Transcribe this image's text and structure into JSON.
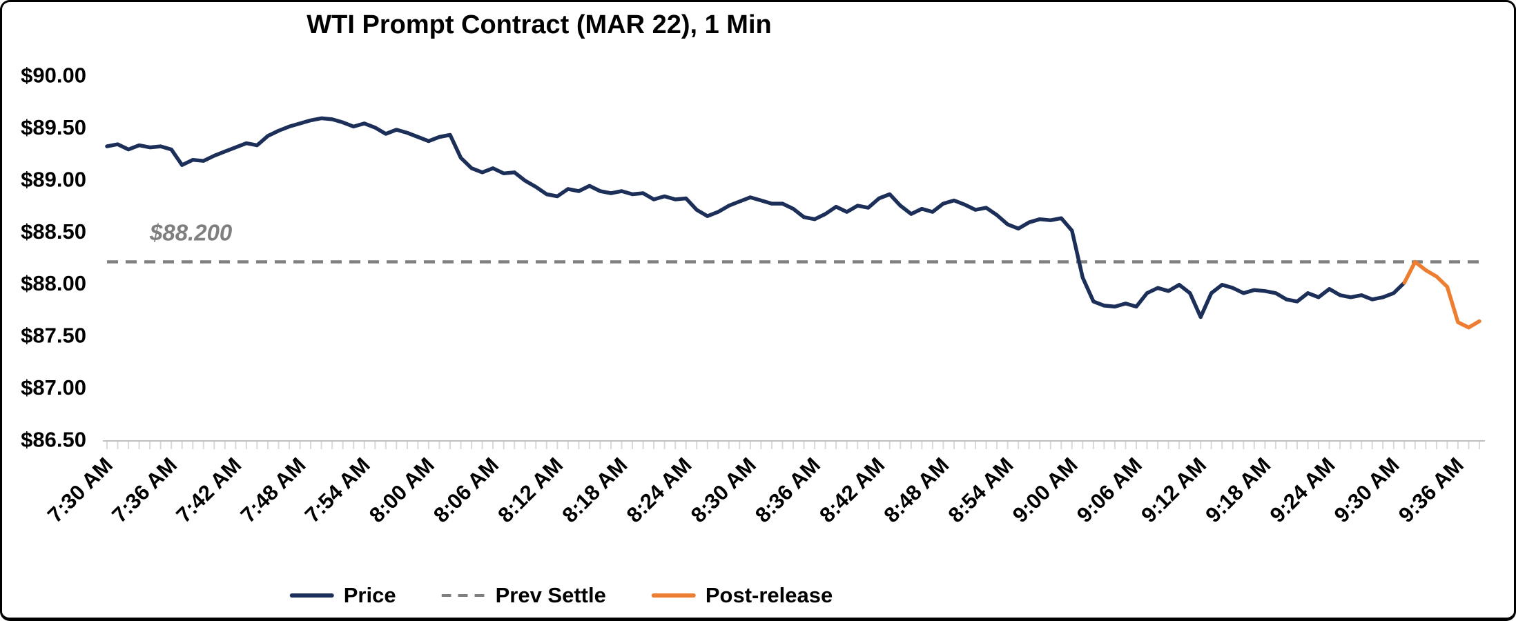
{
  "chart_data": {
    "type": "line",
    "title": "WTI Prompt Contract (MAR 22), 1 Min",
    "ylim": [
      86.5,
      90.0
    ],
    "x_total_minutes": 128,
    "x_tick_interval_min": 6,
    "grid": "off",
    "legend_position": "bottom",
    "y_ticks": [
      {
        "label": "$90.00",
        "value": 90.0
      },
      {
        "label": "$89.50",
        "value": 89.5
      },
      {
        "label": "$89.00",
        "value": 89.0
      },
      {
        "label": "$88.50",
        "value": 88.5
      },
      {
        "label": "$88.00",
        "value": 88.0
      },
      {
        "label": "$87.50",
        "value": 87.5
      },
      {
        "label": "$87.00",
        "value": 87.0
      },
      {
        "label": "$86.50",
        "value": 86.5
      }
    ],
    "x_tick_labels": [
      "7:30 AM",
      "7:36 AM",
      "7:42 AM",
      "7:48 AM",
      "7:54 AM",
      "8:00 AM",
      "8:06 AM",
      "8:12 AM",
      "8:18 AM",
      "8:24 AM",
      "8:30 AM",
      "8:36 AM",
      "8:42 AM",
      "8:48 AM",
      "8:54 AM",
      "9:00 AM",
      "9:06 AM",
      "9:12 AM",
      "9:18 AM",
      "9:24 AM",
      "9:30 AM",
      "9:36 AM"
    ],
    "axis": {
      "line_color": "#bfbfbf",
      "minor_tick_color": "#d9d9d9",
      "label_color": "#000000"
    },
    "prev_settle": {
      "label": "Prev Settle",
      "value": 88.2,
      "color": "#808080",
      "annotation_text": "$88.200",
      "annotation_color": "#7f7f7f"
    },
    "series": [
      {
        "name": "Price",
        "color": "#1c2f58",
        "width": 5.5,
        "start_min": 0,
        "interval_min": 1,
        "values": [
          89.31,
          89.33,
          89.28,
          89.32,
          89.3,
          89.31,
          89.28,
          89.13,
          89.18,
          89.17,
          89.22,
          89.26,
          89.3,
          89.34,
          89.32,
          89.41,
          89.46,
          89.5,
          89.53,
          89.56,
          89.58,
          89.57,
          89.54,
          89.5,
          89.53,
          89.49,
          89.43,
          89.47,
          89.44,
          89.4,
          89.36,
          89.4,
          89.42,
          89.2,
          89.1,
          89.06,
          89.1,
          89.05,
          89.06,
          88.98,
          88.92,
          88.85,
          88.83,
          88.9,
          88.88,
          88.93,
          88.88,
          88.86,
          88.88,
          88.85,
          88.86,
          88.8,
          88.83,
          88.8,
          88.81,
          88.7,
          88.64,
          88.68,
          88.74,
          88.78,
          88.82,
          88.79,
          88.76,
          88.76,
          88.71,
          88.63,
          88.61,
          88.66,
          88.73,
          88.68,
          88.74,
          88.72,
          88.81,
          88.85,
          88.74,
          88.66,
          88.71,
          88.68,
          88.76,
          88.79,
          88.75,
          88.7,
          88.72,
          88.65,
          88.56,
          88.52,
          88.58,
          88.61,
          88.6,
          88.62,
          88.5,
          88.05,
          87.82,
          87.78,
          87.77,
          87.8,
          87.77,
          87.9,
          87.95,
          87.92,
          87.98,
          87.9,
          87.67,
          87.9,
          87.98,
          87.95,
          87.9,
          87.93,
          87.92,
          87.9,
          87.84,
          87.82,
          87.9,
          87.86,
          87.94,
          87.88,
          87.86,
          87.88,
          87.84,
          87.86,
          87.9,
          88.0
        ]
      },
      {
        "name": "Post-release",
        "color": "#ed7d31",
        "width": 5.5,
        "start_min": 121,
        "interval_min": 1,
        "values": [
          88.0,
          88.2,
          88.12,
          88.06,
          87.96,
          87.62,
          87.57,
          87.63
        ]
      }
    ],
    "legend": [
      {
        "label": "Price",
        "color": "#1c2f58",
        "style": "solid"
      },
      {
        "label": "Prev Settle",
        "color": "#808080",
        "style": "dashed"
      },
      {
        "label": "Post-release",
        "color": "#ed7d31",
        "style": "solid"
      }
    ]
  }
}
